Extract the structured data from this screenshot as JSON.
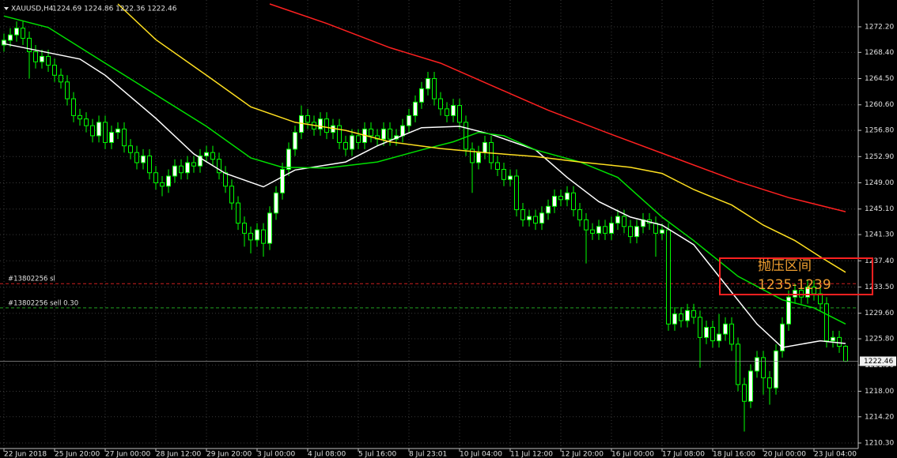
{
  "chart_data": {
    "type": "candlestick",
    "title": "XAUUSD,H4",
    "subtitle": "1224.69 1224.86 1222.36 1222.46",
    "up_color": "#ffffff",
    "down_color": "#000000",
    "wick_color": "#00ff00",
    "grid": true,
    "xlim": [
      -0.625,
      135
    ],
    "xticks": [
      {
        "value": 0,
        "label": "22 Jun 2018"
      },
      {
        "value": 8,
        "label": "25 Jun 20:00"
      },
      {
        "value": 16,
        "label": "27 Jun 00:00"
      },
      {
        "value": 24,
        "label": "28 Jun 12:00"
      },
      {
        "value": 32,
        "label": "29 Jun 20:00"
      },
      {
        "value": 40,
        "label": "3 Jul 00:00"
      },
      {
        "value": 48,
        "label": "4 Jul 08:00"
      },
      {
        "value": 56,
        "label": "5 Jul 16:00"
      },
      {
        "value": 64,
        "label": "8 Jul 23:01"
      },
      {
        "value": 72,
        "label": "10 Jul 04:00"
      },
      {
        "value": 80,
        "label": "11 Jul 12:00"
      },
      {
        "value": 88,
        "label": "12 Jul 20:00"
      },
      {
        "value": 96,
        "label": "16 Jul 00:00"
      },
      {
        "value": 104,
        "label": "17 Jul 08:00"
      },
      {
        "value": 112,
        "label": "18 Jul 16:00"
      },
      {
        "value": 120,
        "label": "20 Jul 00:00"
      },
      {
        "value": 128,
        "label": "23 Jul 04:00"
      }
    ],
    "ylim": [
      1209.48,
      1276.19
    ],
    "yticks": [
      {
        "value": 1272.2,
        "label": "1272.20"
      },
      {
        "value": 1268.4,
        "label": "1268.40"
      },
      {
        "value": 1264.5,
        "label": "1264.50"
      },
      {
        "value": 1260.6,
        "label": "1260.60"
      },
      {
        "value": 1256.8,
        "label": "1256.80"
      },
      {
        "value": 1252.9,
        "label": "1252.90"
      },
      {
        "value": 1249.0,
        "label": "1249.00"
      },
      {
        "value": 1245.1,
        "label": "1245.10"
      },
      {
        "value": 1241.3,
        "label": "1241.30"
      },
      {
        "value": 1237.4,
        "label": "1237.40"
      },
      {
        "value": 1233.5,
        "label": "1233.50"
      },
      {
        "value": 1229.6,
        "label": "1229.60"
      },
      {
        "value": 1225.8,
        "label": "1225.80"
      },
      {
        "value": 1221.9,
        "label": "1221.90"
      },
      {
        "value": 1218.0,
        "label": "1218.00"
      },
      {
        "value": 1214.2,
        "label": "1214.20"
      },
      {
        "value": 1210.3,
        "label": "1210.30"
      }
    ],
    "open": [
      1269.5,
      1270.2,
      1271,
      1272,
      1270.5,
      1268.5,
      1267,
      1267.8,
      1266.5,
      1265,
      1264,
      1261.5,
      1259,
      1258.5,
      1257.5,
      1256,
      1258,
      1255,
      1256.5,
      1257,
      1254.5,
      1253.5,
      1252,
      1253,
      1250.5,
      1249,
      1248.5,
      1250,
      1251.5,
      1250.5,
      1252,
      1251.5,
      1253,
      1253.5,
      1252.5,
      1250.5,
      1248.5,
      1246,
      1243,
      1241.5,
      1240.5,
      1242,
      1240,
      1244.5,
      1247.5,
      1251,
      1254,
      1256.5,
      1259,
      1258,
      1257,
      1258.5,
      1256.5,
      1257.5,
      1255,
      1254,
      1256,
      1255,
      1257,
      1256,
      1255.5,
      1257,
      1255.5,
      1256,
      1257.5,
      1259,
      1261,
      1263,
      1264.5,
      1261.5,
      1260,
      1259,
      1260.5,
      1258,
      1254,
      1252,
      1253.5,
      1255,
      1252,
      1251,
      1249.5,
      1250,
      1245,
      1243.5,
      1244,
      1243,
      1244.5,
      1245.5,
      1247,
      1246.5,
      1247.5,
      1245,
      1243.5,
      1242,
      1241.5,
      1242.5,
      1241.5,
      1243,
      1244,
      1242.5,
      1241,
      1242.5,
      1243.5,
      1243,
      1241.5,
      1242,
      1228,
      1229.5,
      1228.5,
      1230,
      1229,
      1226,
      1227.5,
      1225.5,
      1226.5,
      1228,
      1225,
      1219,
      1216.5,
      1221,
      1223,
      1220,
      1218.5,
      1224,
      1228,
      1232,
      1233,
      1232,
      1233.5,
      1232.5,
      1231,
      1225.5,
      1226,
      1224.69
    ],
    "high": [
      1271.2,
      1272,
      1273,
      1273,
      1271.5,
      1269.5,
      1268.8,
      1268.8,
      1267.5,
      1266,
      1265,
      1262.5,
      1260,
      1259.5,
      1258.5,
      1259,
      1259,
      1257.5,
      1258,
      1258,
      1255.5,
      1254.5,
      1254,
      1254,
      1251.5,
      1250,
      1251,
      1252.5,
      1252.5,
      1253,
      1253,
      1254,
      1254.5,
      1254.5,
      1253.5,
      1251.5,
      1249.5,
      1247,
      1244,
      1242.5,
      1243,
      1243,
      1245.5,
      1248.5,
      1252,
      1255,
      1257.5,
      1260.5,
      1260,
      1259,
      1259.5,
      1259.5,
      1258.5,
      1258.5,
      1256,
      1257,
      1257,
      1258,
      1258,
      1257,
      1258,
      1258,
      1257,
      1258.5,
      1260,
      1262,
      1264,
      1265.5,
      1265.5,
      1262.5,
      1261,
      1261.5,
      1261.5,
      1259,
      1255,
      1254.5,
      1256,
      1256,
      1253,
      1252,
      1251,
      1251,
      1246,
      1245,
      1245,
      1245.5,
      1246.5,
      1248,
      1248,
      1248.5,
      1248.5,
      1246,
      1244.5,
      1243,
      1243.5,
      1243.5,
      1244,
      1245,
      1245,
      1243.5,
      1243.5,
      1244.5,
      1244.5,
      1244,
      1243,
      1243,
      1230.5,
      1230.5,
      1231,
      1231,
      1230,
      1228.5,
      1228.5,
      1229.5,
      1229,
      1229,
      1226,
      1220,
      1222,
      1224,
      1224,
      1221,
      1225,
      1229,
      1233,
      1234,
      1234,
      1234.5,
      1234.5,
      1233.5,
      1232,
      1227,
      1227,
      1224.86
    ],
    "low": [
      1268.5,
      1269.2,
      1270,
      1269.5,
      1264.5,
      1266,
      1266,
      1265.5,
      1264,
      1263,
      1260.5,
      1258,
      1257.5,
      1256.5,
      1255,
      1255,
      1254,
      1254,
      1255.5,
      1253.5,
      1252.5,
      1251,
      1251,
      1249.5,
      1248,
      1247,
      1247.5,
      1249,
      1249.5,
      1249.5,
      1250.5,
      1250.5,
      1252,
      1251.5,
      1249.5,
      1247.5,
      1245,
      1242,
      1239.5,
      1238.5,
      1239.5,
      1238,
      1239,
      1243.5,
      1246.5,
      1250,
      1253,
      1255.5,
      1257,
      1256,
      1256,
      1255.5,
      1255.5,
      1254,
      1253,
      1253,
      1254,
      1254,
      1255,
      1254.5,
      1254.5,
      1254.5,
      1254.5,
      1255,
      1256.5,
      1258,
      1260,
      1262,
      1260.5,
      1259,
      1258,
      1258,
      1257,
      1253,
      1247.5,
      1251,
      1252.5,
      1251,
      1250,
      1248.5,
      1248.5,
      1244,
      1242.5,
      1242.5,
      1242,
      1242,
      1243.5,
      1244.5,
      1245.5,
      1245.5,
      1244,
      1242.5,
      1237,
      1240.5,
      1240.5,
      1240.5,
      1240.5,
      1242,
      1241.5,
      1240,
      1240,
      1241.5,
      1242,
      1238,
      1240.5,
      1227,
      1227,
      1227.5,
      1227.5,
      1228,
      1221.5,
      1225,
      1224.5,
      1224.5,
      1225.5,
      1224,
      1218,
      1212,
      1215.5,
      1220,
      1217.5,
      1216,
      1217.5,
      1223,
      1227,
      1231,
      1231,
      1231,
      1231.5,
      1230,
      1224.5,
      1224.5,
      1223.7,
      1222.36
    ],
    "close": [
      1270.2,
      1271,
      1272,
      1270.5,
      1268.5,
      1267,
      1267.8,
      1266.5,
      1265,
      1264,
      1261.5,
      1259,
      1258.5,
      1257.5,
      1256,
      1258,
      1255,
      1256.5,
      1257,
      1254.5,
      1253.5,
      1252,
      1253,
      1250.5,
      1249,
      1248.5,
      1250,
      1251.5,
      1250.5,
      1252,
      1251.5,
      1253,
      1253.5,
      1252.5,
      1250.5,
      1248.5,
      1246,
      1243,
      1241.5,
      1240.5,
      1242,
      1240,
      1244.5,
      1247.5,
      1251,
      1254,
      1256.5,
      1259,
      1258,
      1257,
      1258.5,
      1256.5,
      1257.5,
      1255,
      1254,
      1256,
      1255,
      1257,
      1256,
      1255.5,
      1257,
      1255.5,
      1256,
      1257.5,
      1259,
      1261,
      1263,
      1264.5,
      1261.5,
      1260,
      1259,
      1260.5,
      1258,
      1254,
      1252,
      1253.5,
      1255,
      1252,
      1251,
      1249.5,
      1250,
      1245,
      1243.5,
      1244,
      1243,
      1244.5,
      1245.5,
      1247,
      1246.5,
      1247.5,
      1245,
      1243.5,
      1242,
      1241.5,
      1242.5,
      1241.5,
      1243,
      1244,
      1242.5,
      1241,
      1242.5,
      1243.5,
      1243,
      1241.5,
      1242,
      1228,
      1229.5,
      1228.5,
      1230,
      1229,
      1226,
      1227.5,
      1225.5,
      1226.5,
      1228,
      1225,
      1219,
      1216.5,
      1221,
      1223,
      1220,
      1218.5,
      1224,
      1228,
      1232,
      1233,
      1232,
      1233.5,
      1232.5,
      1231,
      1225.5,
      1226,
      1224.69,
      1222.46
    ],
    "lines": [
      {
        "color": "#ffffff",
        "x": [
          0,
          12,
          16,
          24,
          30,
          35,
          41,
          46,
          54,
          59,
          66,
          72,
          77,
          84,
          89,
          94,
          99,
          104,
          109,
          114,
          119,
          123,
          129,
          133
        ],
        "values": [
          1269.7,
          1267.4,
          1265.0,
          1258.6,
          1253.3,
          1250.4,
          1248.4,
          1250.9,
          1252.1,
          1254.5,
          1257.2,
          1257.4,
          1256.2,
          1253.9,
          1249.8,
          1246.2,
          1243.9,
          1242.7,
          1239.8,
          1233.9,
          1228.0,
          1224.5,
          1225.5,
          1225.1
        ]
      },
      {
        "color": "#00e000",
        "x": [
          0,
          7,
          16,
          24,
          32,
          39,
          44,
          51,
          59,
          66,
          71,
          75,
          79,
          84,
          91,
          97,
          104,
          109,
          116,
          123,
          128,
          133
        ],
        "values": [
          1273.8,
          1272.1,
          1266.8,
          1262.1,
          1257.4,
          1252.7,
          1251.3,
          1251.2,
          1252.1,
          1253.9,
          1255.1,
          1256.5,
          1256.0,
          1253.9,
          1252.1,
          1249.8,
          1243.9,
          1240.4,
          1235.1,
          1231.6,
          1230.4,
          1228.0
        ]
      },
      {
        "color": "#ffe020",
        "x": [
          18,
          24,
          32,
          39,
          46,
          54,
          61,
          69,
          76,
          84,
          91,
          99,
          104,
          109,
          115,
          120,
          125,
          129,
          133
        ],
        "values": [
          1275.6,
          1270.3,
          1265.0,
          1260.3,
          1258.0,
          1256.8,
          1255.1,
          1254.1,
          1253.5,
          1252.9,
          1252.1,
          1251.3,
          1250.4,
          1248.0,
          1245.7,
          1242.7,
          1240.4,
          1238.0,
          1235.7
        ]
      },
      {
        "color": "#ff2020",
        "x": [
          42,
          51,
          61,
          69,
          76,
          86,
          96,
          106,
          116,
          124,
          133
        ],
        "values": [
          1275.6,
          1272.7,
          1269.1,
          1266.8,
          1263.9,
          1259.8,
          1256.2,
          1252.7,
          1249.2,
          1246.8,
          1244.7
        ]
      }
    ],
    "price_lines": [
      {
        "label": "#13802256 sl",
        "value": 1234.0,
        "color": "#d02020"
      },
      {
        "label": "#13802256 sell 0.30",
        "value": 1230.4,
        "color": "#20a020"
      }
    ],
    "last_price": 1222.46,
    "annotation": [
      "抛压区间",
      "1235-1239"
    ]
  }
}
